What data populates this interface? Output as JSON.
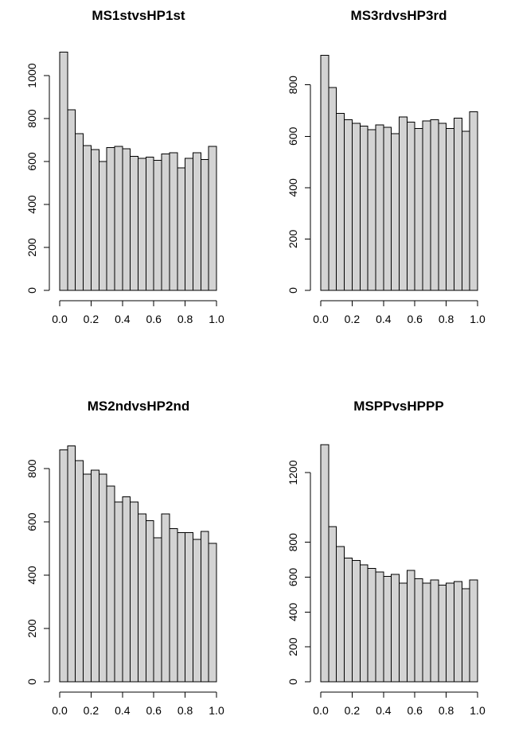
{
  "chart_data": [
    {
      "type": "bar",
      "title": "MS1stvsHP1st",
      "xlabel": "",
      "ylabel": "",
      "xlim": [
        0,
        1
      ],
      "ylim": [
        0,
        1100
      ],
      "grid": false,
      "bin_width": 0.05,
      "x_ticks": [
        "0.0",
        "0.2",
        "0.4",
        "0.6",
        "0.8",
        "1.0"
      ],
      "y_ticks": [
        "0",
        "200",
        "400",
        "600",
        "800",
        "1000"
      ],
      "values": [
        1110,
        840,
        730,
        675,
        655,
        600,
        665,
        670,
        660,
        625,
        615,
        620,
        605,
        635,
        640,
        570,
        615,
        640,
        610,
        670
      ]
    },
    {
      "type": "bar",
      "title": "MS3rdvsHP3rd",
      "xlabel": "",
      "ylabel": "",
      "xlim": [
        0,
        1
      ],
      "ylim": [
        0,
        920
      ],
      "grid": false,
      "bin_width": 0.05,
      "x_ticks": [
        "0.0",
        "0.2",
        "0.4",
        "0.6",
        "0.8",
        "1.0"
      ],
      "y_ticks": [
        "0",
        "200",
        "400",
        "600",
        "800"
      ],
      "values": [
        915,
        790,
        690,
        665,
        650,
        640,
        625,
        645,
        635,
        610,
        675,
        655,
        630,
        660,
        665,
        650,
        630,
        670,
        620,
        695
      ]
    },
    {
      "type": "bar",
      "title": "MS2ndvsHP2nd",
      "xlabel": "",
      "ylabel": "",
      "xlim": [
        0,
        1
      ],
      "ylim": [
        0,
        890
      ],
      "grid": false,
      "bin_width": 0.05,
      "x_ticks": [
        "0.0",
        "0.2",
        "0.4",
        "0.6",
        "0.8",
        "1.0"
      ],
      "y_ticks": [
        "0",
        "200",
        "400",
        "600",
        "800"
      ],
      "values": [
        870,
        885,
        830,
        780,
        795,
        780,
        735,
        675,
        695,
        675,
        630,
        605,
        540,
        630,
        575,
        560,
        560,
        535,
        565,
        520
      ]
    },
    {
      "type": "bar",
      "title": "MSPPvsHPPP",
      "xlabel": "",
      "ylabel": "",
      "xlim": [
        0,
        1
      ],
      "ylim": [
        0,
        1360
      ],
      "grid": false,
      "bin_width": 0.05,
      "x_ticks": [
        "0.0",
        "0.2",
        "0.4",
        "0.6",
        "0.8",
        "1.0"
      ],
      "y_ticks": [
        "0",
        "200",
        "400",
        "600",
        "800",
        "1200"
      ],
      "values": [
        1360,
        890,
        775,
        710,
        695,
        670,
        650,
        630,
        605,
        615,
        565,
        640,
        590,
        565,
        585,
        555,
        565,
        575,
        535,
        585
      ]
    }
  ]
}
